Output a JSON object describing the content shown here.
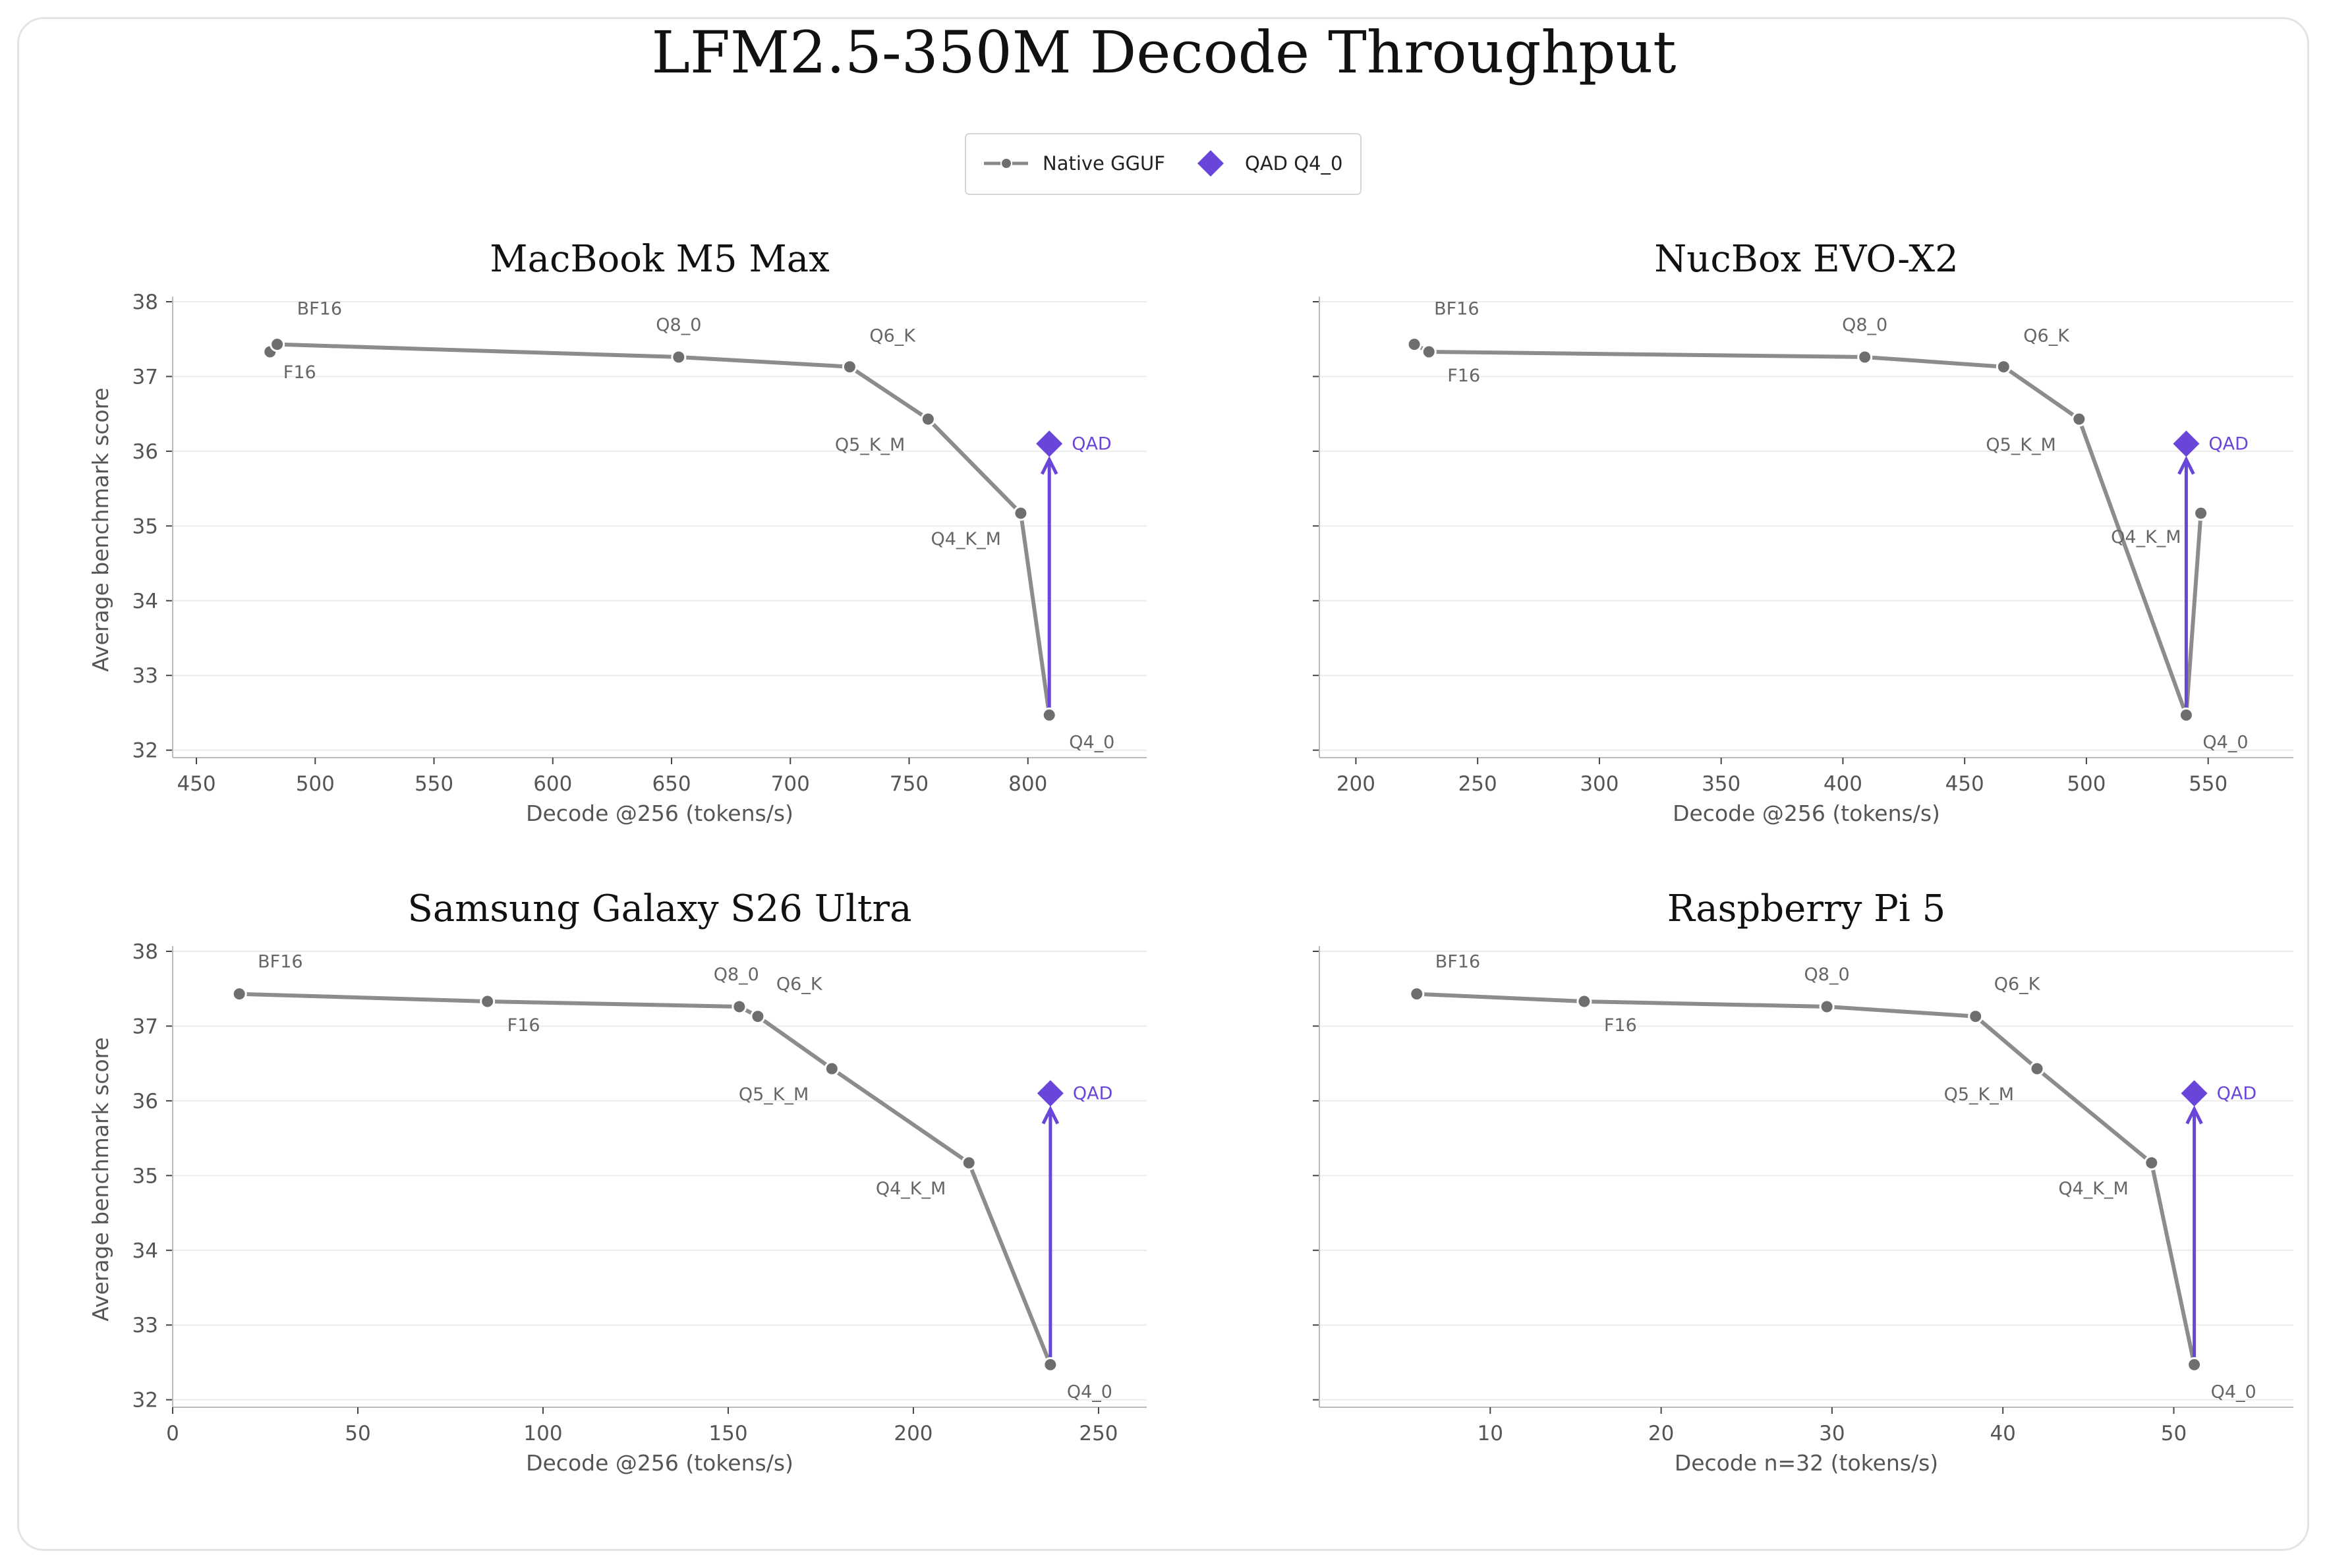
{
  "figure": {
    "title": "LFM2.5-350M Decode Throughput"
  },
  "legend": {
    "items": [
      {
        "label": "Native GGUF",
        "marker": "line-dot",
        "color": "#888888"
      },
      {
        "label": "QAD Q4_0",
        "marker": "diamond",
        "color": "#6a45d9"
      }
    ]
  },
  "colors": {
    "native_line": "#8c8c8c",
    "native_point": "#6e6e6e",
    "qad": "#6a45d9",
    "grid": "#ececec",
    "axis": "#bbbbbb"
  },
  "chart_data": [
    {
      "type": "line",
      "title": "MacBook M5 Max",
      "xlabel": "Decode @256 (tokens/s)",
      "ylabel": "Average benchmark score",
      "xlim": [
        440,
        850
      ],
      "ylim": [
        31.9,
        38.0
      ],
      "xticks": [
        450,
        500,
        550,
        600,
        650,
        700,
        750,
        800
      ],
      "yticks": [
        32,
        33,
        34,
        35,
        36,
        37,
        38
      ],
      "grid": "y",
      "series": [
        {
          "name": "Native GGUF",
          "points": [
            {
              "label": "F16",
              "x": 481,
              "y": 37.33
            },
            {
              "label": "BF16",
              "x": 484,
              "y": 37.43
            },
            {
              "label": "Q8_0",
              "x": 653,
              "y": 37.26
            },
            {
              "label": "Q6_K",
              "x": 725,
              "y": 37.13
            },
            {
              "label": "Q5_K_M",
              "x": 758,
              "y": 36.43
            },
            {
              "label": "Q4_K_M",
              "x": 797,
              "y": 35.17
            },
            {
              "label": "Q4_0",
              "x": 809,
              "y": 32.47
            }
          ]
        },
        {
          "name": "QAD Q4_0",
          "points": [
            {
              "label": "QAD",
              "x": 809,
              "y": 36.1
            }
          ]
        }
      ]
    },
    {
      "type": "line",
      "title": "NucBox EVO-X2",
      "xlabel": "Decode @256 (tokens/s)",
      "ylabel": "",
      "xlim": [
        185,
        585
      ],
      "ylim": [
        31.9,
        38.0
      ],
      "xticks": [
        200,
        250,
        300,
        350,
        400,
        450,
        500,
        550
      ],
      "yticks": [
        32,
        33,
        34,
        35,
        36,
        37,
        38
      ],
      "grid": "y",
      "series": [
        {
          "name": "Native GGUF",
          "points": [
            {
              "label": "BF16",
              "x": 224,
              "y": 37.43
            },
            {
              "label": "F16",
              "x": 230,
              "y": 37.33
            },
            {
              "label": "Q8_0",
              "x": 409,
              "y": 37.26
            },
            {
              "label": "Q6_K",
              "x": 466,
              "y": 37.13
            },
            {
              "label": "Q5_K_M",
              "x": 497,
              "y": 36.43
            },
            {
              "label": "Q4_0",
              "x": 541,
              "y": 32.47
            },
            {
              "label": "Q4_K_M",
              "x": 547,
              "y": 35.17
            }
          ]
        },
        {
          "name": "QAD Q4_0",
          "points": [
            {
              "label": "QAD",
              "x": 541,
              "y": 36.1
            }
          ]
        }
      ]
    },
    {
      "type": "line",
      "title": "Samsung Galaxy S26 Ultra",
      "xlabel": "Decode @256 (tokens/s)",
      "ylabel": "Average benchmark score",
      "xlim": [
        0,
        263
      ],
      "ylim": [
        31.9,
        38.0
      ],
      "xticks": [
        0,
        50,
        100,
        150,
        200,
        250
      ],
      "yticks": [
        32,
        33,
        34,
        35,
        36,
        37,
        38
      ],
      "grid": "y",
      "series": [
        {
          "name": "Native GGUF",
          "points": [
            {
              "label": "BF16",
              "x": 18,
              "y": 37.43
            },
            {
              "label": "F16",
              "x": 85,
              "y": 37.33
            },
            {
              "label": "Q8_0",
              "x": 153,
              "y": 37.26
            },
            {
              "label": "Q6_K",
              "x": 158,
              "y": 37.13
            },
            {
              "label": "Q5_K_M",
              "x": 178,
              "y": 36.43
            },
            {
              "label": "Q4_K_M",
              "x": 215,
              "y": 35.17
            },
            {
              "label": "Q4_0",
              "x": 237,
              "y": 32.47
            }
          ]
        },
        {
          "name": "QAD Q4_0",
          "points": [
            {
              "label": "QAD",
              "x": 237,
              "y": 36.1
            }
          ]
        }
      ]
    },
    {
      "type": "line",
      "title": "Raspberry Pi 5",
      "xlabel": "Decode n=32 (tokens/s)",
      "ylabel": "",
      "xlim": [
        0,
        57
      ],
      "ylim": [
        31.9,
        38.0
      ],
      "xticks": [
        10,
        20,
        30,
        40,
        50
      ],
      "yticks": [
        32,
        33,
        34,
        35,
        36,
        37,
        38
      ],
      "grid": "y",
      "series": [
        {
          "name": "Native GGUF",
          "points": [
            {
              "label": "BF16",
              "x": 5.7,
              "y": 37.43
            },
            {
              "label": "F16",
              "x": 15.5,
              "y": 37.33
            },
            {
              "label": "Q8_0",
              "x": 29.7,
              "y": 37.26
            },
            {
              "label": "Q6_K",
              "x": 38.4,
              "y": 37.13
            },
            {
              "label": "Q5_K_M",
              "x": 42.0,
              "y": 36.43
            },
            {
              "label": "Q4_K_M",
              "x": 48.7,
              "y": 35.17
            },
            {
              "label": "Q4_0",
              "x": 51.2,
              "y": 32.47
            }
          ]
        },
        {
          "name": "QAD Q4_0",
          "points": [
            {
              "label": "QAD",
              "x": 51.2,
              "y": 36.1
            }
          ]
        }
      ]
    }
  ]
}
